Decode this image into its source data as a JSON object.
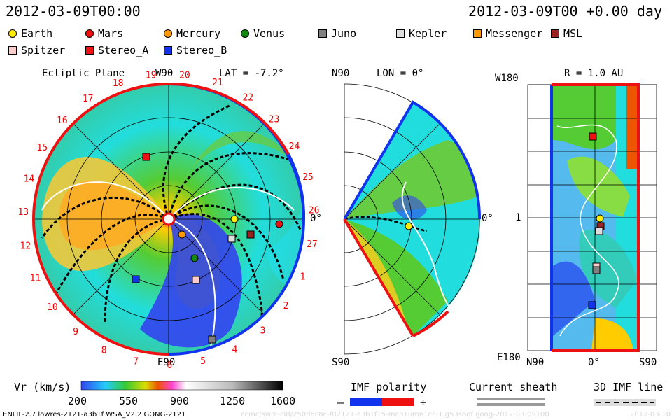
{
  "header": {
    "time_left": "2012-03-09T00:00",
    "time_right": "2012-03-09T00 +0.00 day"
  },
  "legend": [
    {
      "name": "Earth",
      "color": "#ffee00",
      "shape": "circle"
    },
    {
      "name": "Mars",
      "color": "#ee1111",
      "shape": "circle"
    },
    {
      "name": "Mercury",
      "color": "#ff9900",
      "shape": "circle"
    },
    {
      "name": "Venus",
      "color": "#118811",
      "shape": "circle"
    },
    {
      "name": "Juno",
      "color": "#808080",
      "shape": "square"
    },
    {
      "name": "Kepler",
      "color": "#dddddd",
      "shape": "square"
    },
    {
      "name": "Messenger",
      "color": "#ff9900",
      "shape": "square"
    },
    {
      "name": "MSL",
      "color": "#992222",
      "shape": "square"
    },
    {
      "name": "Spitzer",
      "color": "#ffcccc",
      "shape": "square"
    },
    {
      "name": "Stereo_A",
      "color": "#ee1111",
      "shape": "square"
    },
    {
      "name": "Stereo_B",
      "color": "#1133ee",
      "shape": "square"
    }
  ],
  "ecliptic": {
    "title": "Ecliptic Plane",
    "top_label": "W90",
    "lat_label": "LAT = -7.2°",
    "bottom_label": "E90",
    "right_label": "0°",
    "rotation_labels": [
      "19",
      "20",
      "21",
      "22",
      "23",
      "24",
      "25",
      "26",
      "27",
      "1",
      "2",
      "3",
      "4",
      "5",
      "6",
      "7",
      "8",
      "9",
      "10",
      "11",
      "12",
      "13",
      "14",
      "15",
      "16",
      "17",
      "18"
    ]
  },
  "meridian": {
    "top_label": "N90",
    "lon_label": "LON = 0°",
    "bottom_label": "S90",
    "right_label": "0°"
  },
  "latlon": {
    "title": "R = 1.0 AU",
    "top_left": "W180",
    "mid_left": "1",
    "bottom_left": "E180",
    "x_labels": [
      "N90",
      "0°",
      "S90"
    ]
  },
  "colorbar": {
    "label": "Vr (km/s)",
    "ticks": [
      "200",
      "550",
      "900",
      "1250",
      "1600"
    ]
  },
  "imf": {
    "label": "IMF polarity",
    "minus": "–",
    "plus": "+"
  },
  "sheath": {
    "label": "Current sheath"
  },
  "imf3d": {
    "label": "3D IMF line"
  },
  "footer": {
    "model": "ENLIL-2.7 lowres-2121-a3b1f WSA_V2.2 GONG-2121",
    "run": "ccmc/swrc-cld/250d6c8c-f02121-a3b1f15-mcp1umn1cc-1.g53sbof gong-2012-03-09T00",
    "date": "2012-03-10"
  }
}
